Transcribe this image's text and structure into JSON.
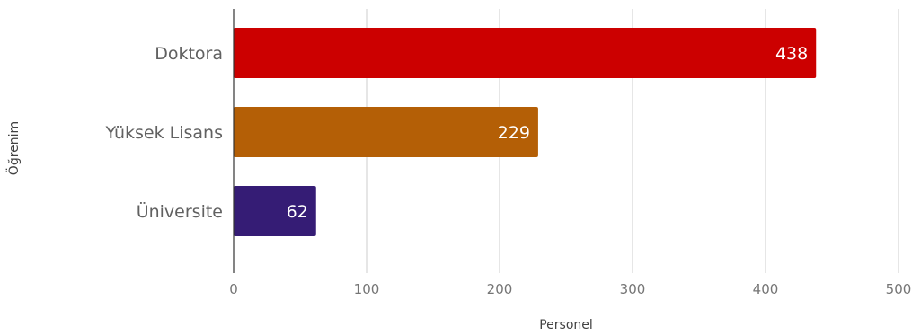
{
  "chart_data": {
    "type": "bar",
    "orientation": "horizontal",
    "categories": [
      "Doktora",
      "Yüksek Lisans",
      "Üniversite"
    ],
    "values": [
      438,
      229,
      62
    ],
    "bar_colors": [
      "#cc0000",
      "#b45f06",
      "#351c75"
    ],
    "data_labels": [
      "438",
      "229",
      "62"
    ],
    "xlabel": "Personel",
    "ylabel": "Öğrenim",
    "xlim": [
      0,
      500
    ],
    "xticks": [
      0,
      100,
      200,
      300,
      400,
      500
    ],
    "xtick_labels": [
      "0",
      "100",
      "200",
      "300",
      "400",
      "500"
    ],
    "grid": true,
    "legend": "none"
  }
}
